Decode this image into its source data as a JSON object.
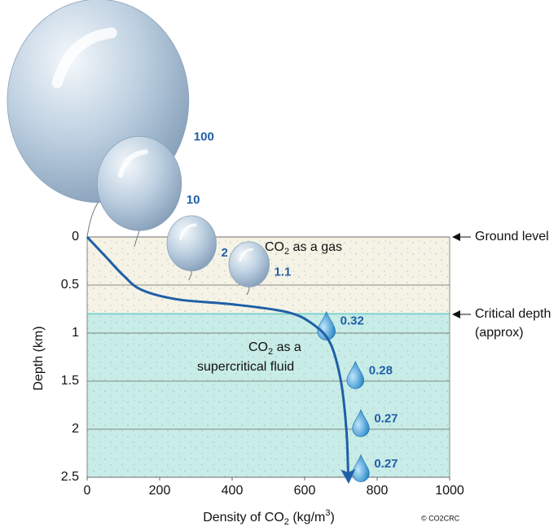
{
  "chart_data": {
    "type": "line",
    "x_label": [
      "Density of CO",
      "2",
      " (kg/m",
      "3",
      ")"
    ],
    "y_label": "Depth (km)",
    "xlim": [
      0,
      1000
    ],
    "xticks": [
      0,
      200,
      400,
      600,
      800,
      1000
    ],
    "ylim": [
      0,
      2.5
    ],
    "yticks": [
      0,
      0.5,
      1,
      1.5,
      2,
      2.5
    ],
    "critical_depth": 0.8,
    "color": "#1f5fa8",
    "series": [
      {
        "x": [
          0,
          50,
          100,
          150,
          250,
          400,
          550,
          620,
          670,
          700,
          715,
          720
        ],
        "y": [
          0,
          0.2,
          0.4,
          0.55,
          0.65,
          0.7,
          0.78,
          0.9,
          1.1,
          1.5,
          2.0,
          2.45
        ]
      }
    ],
    "markers": [
      {
        "volume": 100,
        "density": 0,
        "depth": 0
      },
      {
        "volume": 10,
        "density": 130,
        "depth": 0.1
      },
      {
        "volume": 2,
        "density": 280,
        "depth": 0.45
      },
      {
        "volume": 1.1,
        "density": 440,
        "depth": 0.6
      },
      {
        "volume": 0.32,
        "density": 660,
        "depth": 0.98
      },
      {
        "volume": 0.28,
        "density": 740,
        "depth": 1.49
      },
      {
        "volume": 0.27,
        "density": 755,
        "depth": 1.99
      },
      {
        "volume": 0.27,
        "density": 755,
        "depth": 2.46
      }
    ],
    "gas_label": [
      "CO",
      "2",
      " as a gas"
    ],
    "fluid_label": [
      [
        "CO",
        "2",
        " as a"
      ],
      "supercritical fluid"
    ],
    "ground_label": "Ground level",
    "critical_label": [
      "Critical depth",
      "(approx)"
    ],
    "credit": "© CO2CRC"
  }
}
